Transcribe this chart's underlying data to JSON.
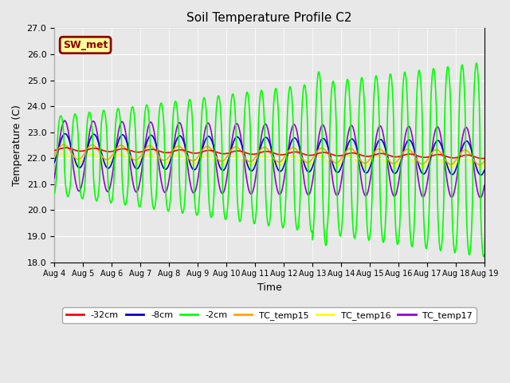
{
  "title": "Soil Temperature Profile C2",
  "xlabel": "Time",
  "ylabel": "Temperature (C)",
  "ylim": [
    18.0,
    27.0
  ],
  "n_days": 15,
  "yticks": [
    18.0,
    19.0,
    20.0,
    21.0,
    22.0,
    23.0,
    24.0,
    25.0,
    26.0,
    27.0
  ],
  "xtick_labels": [
    "Aug 4",
    "Aug 5",
    "Aug 6",
    "Aug 7",
    "Aug 8",
    "Aug 9",
    "Aug 10",
    "Aug 11",
    "Aug 12",
    "Aug 13",
    "Aug 14",
    "Aug 15",
    "Aug 16",
    "Aug 17",
    "Aug 18",
    "Aug 19"
  ],
  "annotation_text": "SW_met",
  "annotation_bg": "#FFFF99",
  "annotation_border": "#8B0000",
  "annotation_text_color": "#8B0000",
  "plot_bg": "#E8E8E8",
  "fig_bg": "#E8E8E8",
  "grid_color": "#FFFFFF",
  "lines": {
    "-32cm": {
      "color": "#FF0000",
      "lw": 1.2,
      "zorder": 4
    },
    "-8cm": {
      "color": "#0000CD",
      "lw": 1.2,
      "zorder": 3
    },
    "-2cm": {
      "color": "#00FF00",
      "lw": 1.2,
      "zorder": 5
    },
    "TC_temp15": {
      "color": "#FFA500",
      "lw": 1.2,
      "zorder": 3
    },
    "TC_temp16": {
      "color": "#FFFF00",
      "lw": 1.2,
      "zorder": 2
    },
    "TC_temp17": {
      "color": "#9400D3",
      "lw": 1.2,
      "zorder": 3
    }
  },
  "legend_order": [
    "-32cm",
    "-8cm",
    "-2cm",
    "TC_temp15",
    "TC_temp16",
    "TC_temp17"
  ]
}
